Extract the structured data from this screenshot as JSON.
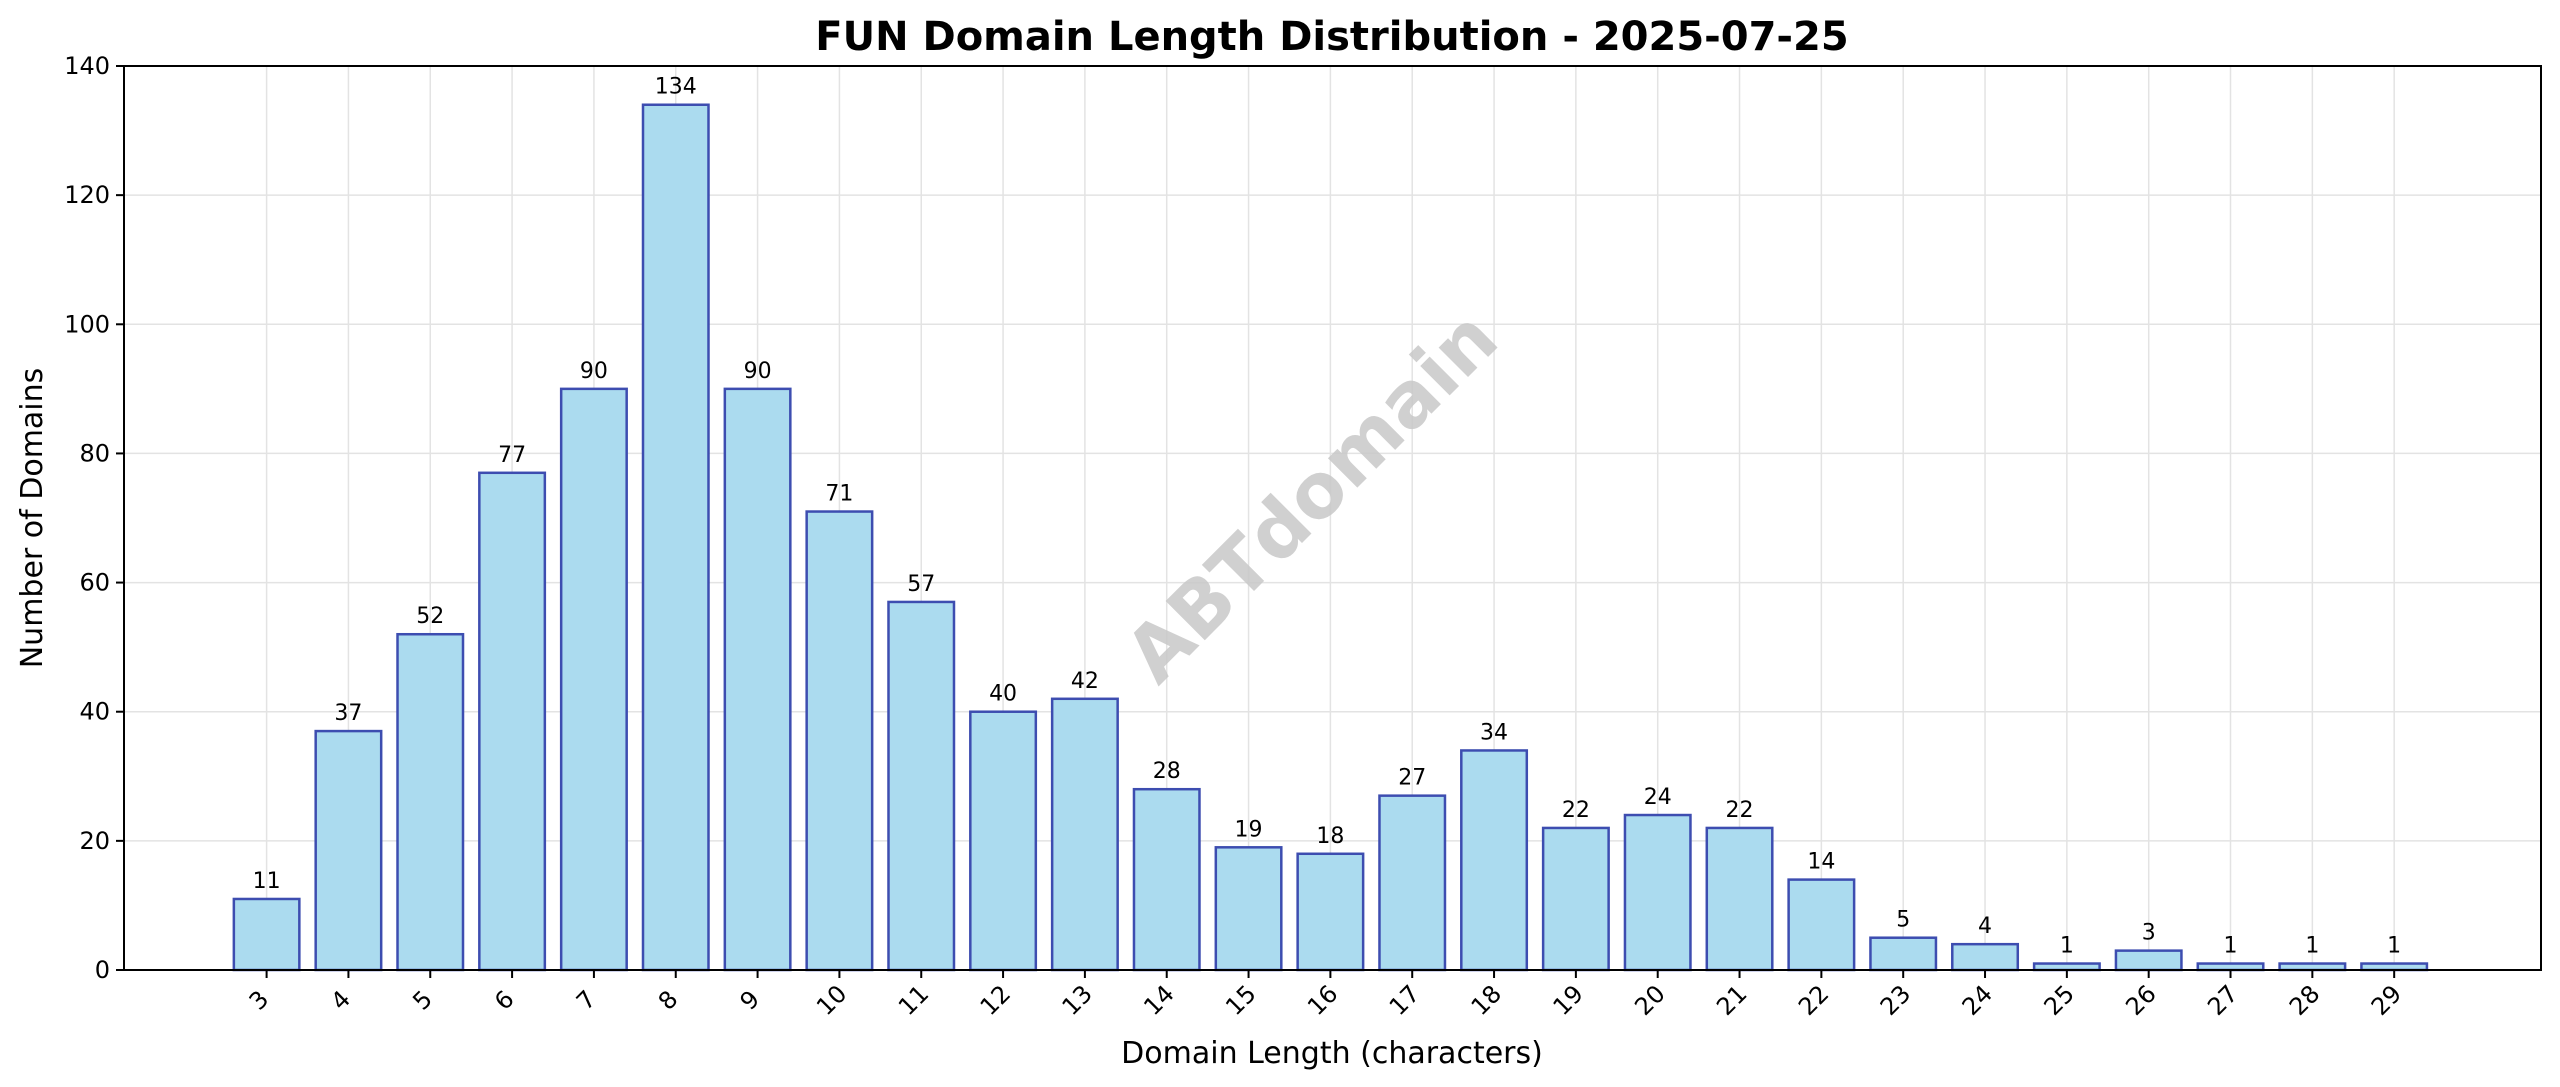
{
  "chart_data": {
    "type": "bar",
    "title": "FUN Domain Length Distribution - 2025-07-25",
    "xlabel": "Domain Length (characters)",
    "ylabel": "Number of Domains",
    "categories": [
      "3",
      "4",
      "5",
      "6",
      "7",
      "8",
      "9",
      "10",
      "11",
      "12",
      "13",
      "14",
      "15",
      "16",
      "17",
      "18",
      "19",
      "20",
      "21",
      "22",
      "23",
      "24",
      "25",
      "26",
      "27",
      "28",
      "29"
    ],
    "values": [
      11,
      37,
      52,
      77,
      90,
      134,
      90,
      71,
      57,
      40,
      42,
      28,
      19,
      18,
      27,
      34,
      22,
      24,
      22,
      14,
      5,
      4,
      1,
      3,
      1,
      1,
      1
    ],
    "ylim": [
      0,
      140
    ],
    "yticks": [
      0,
      20,
      40,
      60,
      80,
      100,
      120,
      140
    ],
    "grid": true,
    "legend": "none",
    "data_labels": true,
    "bar_fill": "#abdbef",
    "bar_edge": "#3d4db0",
    "watermark": "ABTdomain"
  }
}
